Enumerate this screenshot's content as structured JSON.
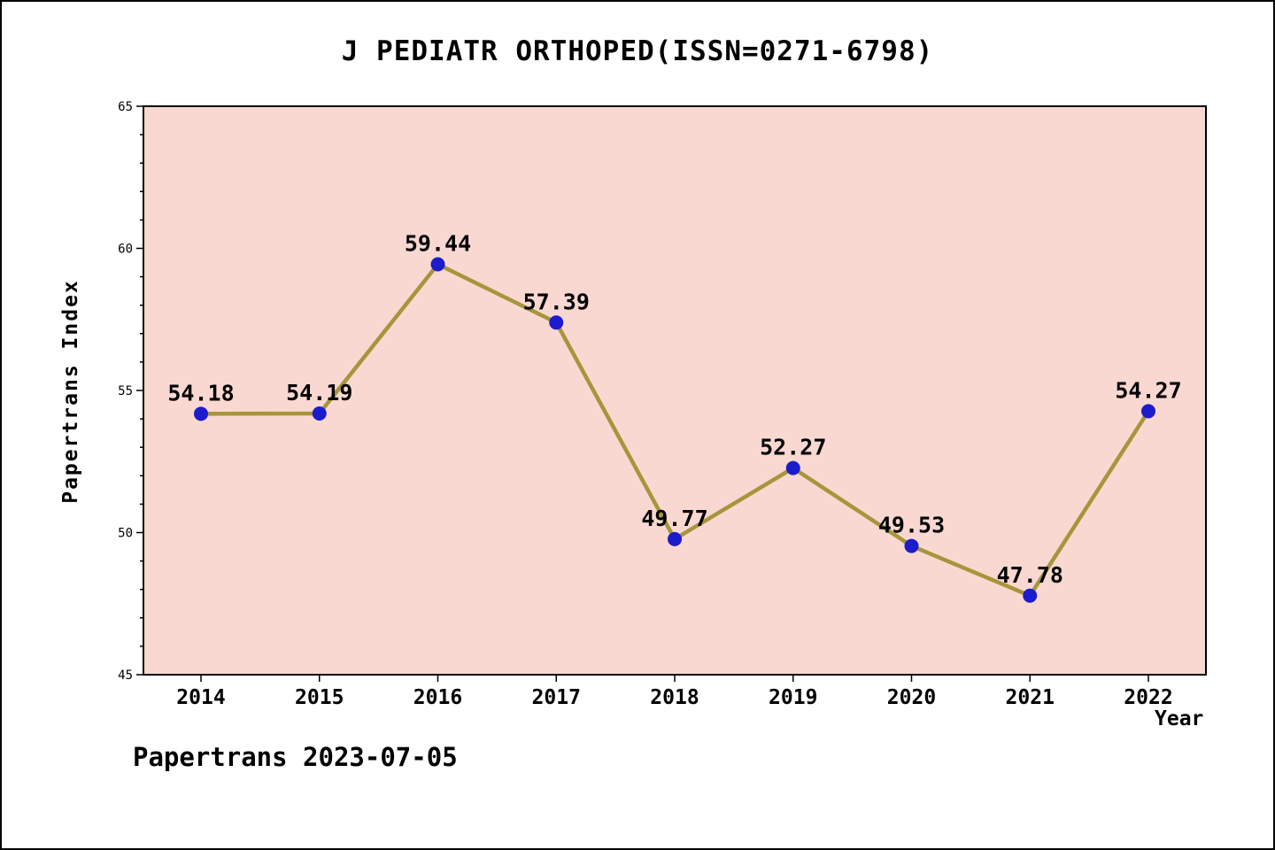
{
  "figure": {
    "title": "J PEDIATR ORTHOPED(ISSN=0271-6798)",
    "footer": "Papertrans 2023-07-05"
  },
  "chart_data": {
    "type": "line",
    "title": "J PEDIATR ORTHOPED(ISSN=0271-6798)",
    "xlabel": "Year",
    "ylabel": "Papertrans Index",
    "categories": [
      "2014",
      "2015",
      "2016",
      "2017",
      "2018",
      "2019",
      "2020",
      "2021",
      "2022"
    ],
    "values": [
      54.18,
      54.19,
      59.44,
      57.39,
      49.77,
      52.27,
      49.53,
      47.78,
      54.27
    ],
    "ylim": [
      45,
      65
    ],
    "yticks": [
      45,
      50,
      55,
      60,
      65
    ],
    "minor_tick_step": 1,
    "grid": "off",
    "legend": "none",
    "colors": {
      "plot_bg": "#fad8d2",
      "line": "#a5963b",
      "point": "#1c1ccd",
      "frame": "#000000",
      "label_text": "#000000"
    }
  }
}
